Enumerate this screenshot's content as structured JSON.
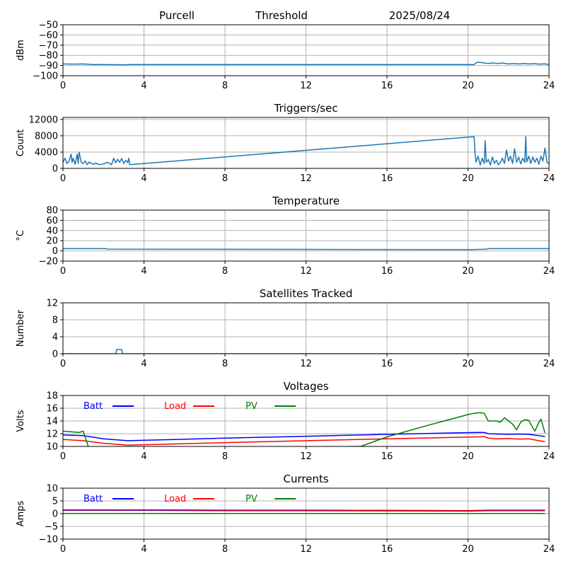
{
  "header": {
    "site": "Purcell",
    "mode": "Threshold",
    "date": "2025/08/24"
  },
  "colors": {
    "default": "#1f77b4",
    "batt": "#0000ff",
    "load": "#ff0000",
    "pv": "#008000",
    "grid": "#b0b0b0"
  },
  "chart_data": [
    {
      "type": "line",
      "title": "",
      "xlabel": "",
      "ylabel": "dBm",
      "xlim": [
        0,
        24
      ],
      "ylim": [
        -100,
        -50
      ],
      "xticks": [
        0,
        4,
        8,
        12,
        16,
        20,
        24
      ],
      "yticks": [
        -100,
        -90,
        -80,
        -70,
        -60,
        -50
      ],
      "ytick_labels": [
        "−100",
        "−90",
        "−80",
        "−70",
        "−60",
        "−50"
      ],
      "grid": true,
      "series": [
        {
          "color": "default",
          "x": [
            0,
            0.5,
            1.0,
            1.5,
            2.0,
            2.5,
            3.0,
            3.3,
            8,
            12,
            16,
            20,
            20.3,
            20.4,
            20.5,
            20.6,
            20.8,
            21.0,
            21.2,
            21.5,
            21.7,
            22.0,
            22.3,
            22.5,
            22.8,
            23.0,
            23.3,
            23.5,
            23.8,
            24
          ],
          "y": [
            -88.5,
            -88.6,
            -88.5,
            -89,
            -89,
            -89.2,
            -89.3,
            -89,
            -89,
            -89,
            -89,
            -89,
            -89,
            -87.5,
            -86.5,
            -87,
            -87.5,
            -88,
            -87.5,
            -88,
            -87.5,
            -88.5,
            -88,
            -88.5,
            -88,
            -88.5,
            -88.2,
            -88.6,
            -88.4,
            -89
          ]
        }
      ]
    },
    {
      "type": "line",
      "title": "Triggers/sec",
      "xlabel": "",
      "ylabel": "Count",
      "xlim": [
        0,
        24
      ],
      "ylim": [
        0,
        12500
      ],
      "xticks": [
        0,
        4,
        8,
        12,
        16,
        20,
        24
      ],
      "yticks": [
        0,
        4000,
        8000,
        12000
      ],
      "ytick_labels": [
        "0",
        "4000",
        "8000",
        "12000"
      ],
      "grid": true,
      "series": [
        {
          "color": "default",
          "x": [
            0,
            0.1,
            0.2,
            0.3,
            0.4,
            0.45,
            0.5,
            0.6,
            0.7,
            0.75,
            0.8,
            0.9,
            1.0,
            1.1,
            1.2,
            1.3,
            1.4,
            1.5,
            1.6,
            1.8,
            2.0,
            2.2,
            2.4,
            2.5,
            2.6,
            2.7,
            2.8,
            2.9,
            3.0,
            3.1,
            3.2,
            3.25,
            3.3,
            20.3,
            20.35,
            20.4,
            20.5,
            20.6,
            20.7,
            20.8,
            20.85,
            20.9,
            21.0,
            21.1,
            21.2,
            21.3,
            21.4,
            21.5,
            21.6,
            21.7,
            21.8,
            21.9,
            22.0,
            22.1,
            22.2,
            22.3,
            22.4,
            22.5,
            22.6,
            22.7,
            22.8,
            22.85,
            22.9,
            23.0,
            23.1,
            23.2,
            23.3,
            23.4,
            23.5,
            23.6,
            23.7,
            23.8,
            23.9,
            24
          ],
          "y": [
            1500,
            2500,
            1200,
            1800,
            3500,
            1500,
            2500,
            1000,
            3500,
            1200,
            4000,
            1500,
            1200,
            1800,
            900,
            1600,
            1200,
            1000,
            1300,
            900,
            1100,
            1500,
            900,
            2500,
            1400,
            2200,
            1500,
            2400,
            1200,
            2000,
            1400,
            2500,
            900,
            7800,
            3500,
            1500,
            3000,
            800,
            2500,
            1200,
            6800,
            1500,
            2200,
            800,
            2800,
            1200,
            2000,
            900,
            1500,
            2500,
            1200,
            4500,
            1800,
            3000,
            1200,
            4800,
            1500,
            2800,
            1100,
            2500,
            1500,
            7800,
            1600,
            3000,
            1200,
            2800,
            1500,
            2500,
            1000,
            3000,
            1800,
            5000,
            1500,
            1200
          ]
        }
      ]
    },
    {
      "type": "line",
      "title": "Temperature",
      "xlabel": "",
      "ylabel": "°C",
      "xlim": [
        0,
        24
      ],
      "ylim": [
        -20,
        80
      ],
      "xticks": [
        0,
        4,
        8,
        12,
        16,
        20,
        24
      ],
      "yticks": [
        -20,
        0,
        20,
        40,
        60,
        80
      ],
      "ytick_labels": [
        "−20",
        "0",
        "20",
        "40",
        "60",
        "80"
      ],
      "grid": true,
      "series": [
        {
          "color": "default",
          "x": [
            0,
            2.1,
            2.2,
            20.2,
            20.3,
            20.9,
            21.0,
            24
          ],
          "y": [
            4.5,
            4.5,
            3.5,
            2.5,
            2.8,
            3.2,
            4.5,
            4.5
          ]
        }
      ]
    },
    {
      "type": "line",
      "title": "Satellites Tracked",
      "xlabel": "",
      "ylabel": "Number",
      "xlim": [
        0,
        24
      ],
      "ylim": [
        0,
        12
      ],
      "xticks": [
        0,
        4,
        8,
        12,
        16,
        20,
        24
      ],
      "yticks": [
        0,
        4,
        8,
        12
      ],
      "ytick_labels": [
        "0",
        "4",
        "8",
        "12"
      ],
      "grid": true,
      "series": [
        {
          "color": "default",
          "x": [
            0,
            2.6,
            2.65,
            2.9,
            2.95,
            24
          ],
          "y": [
            0,
            0,
            1,
            1,
            0,
            0
          ]
        }
      ]
    },
    {
      "type": "line",
      "title": "Voltages",
      "xlabel": "",
      "ylabel": "Volts",
      "xlim": [
        0,
        24
      ],
      "ylim": [
        10,
        18
      ],
      "xticks": [
        0,
        4,
        8,
        12,
        16,
        20,
        24
      ],
      "yticks": [
        10,
        12,
        14,
        16,
        18
      ],
      "ytick_labels": [
        "10",
        "12",
        "14",
        "16",
        "18"
      ],
      "grid": true,
      "legend": "top-left",
      "series": [
        {
          "name": "Batt",
          "color": "batt",
          "x": [
            0,
            1,
            2,
            3.2,
            8,
            12,
            16,
            20.5,
            20.8,
            21.0,
            21.5,
            22.0,
            22.5,
            23.0,
            23.5,
            23.8
          ],
          "y": [
            11.8,
            11.7,
            11.2,
            10.9,
            11.3,
            11.6,
            11.9,
            12.2,
            12.2,
            12.0,
            11.95,
            11.9,
            11.95,
            11.9,
            11.7,
            11.55
          ]
        },
        {
          "name": "Load",
          "color": "load",
          "x": [
            0,
            1,
            2,
            3.2,
            8,
            12,
            16,
            20.5,
            20.8,
            21.0,
            21.5,
            22.0,
            22.5,
            23.0,
            23.5,
            23.8
          ],
          "y": [
            11.1,
            10.9,
            10.5,
            10.2,
            10.6,
            10.9,
            11.2,
            11.5,
            11.55,
            11.3,
            11.2,
            11.25,
            11.15,
            11.2,
            10.9,
            10.75
          ]
        },
        {
          "name": "PV",
          "color": "pv",
          "x": [
            0,
            0.4,
            0.8,
            1.0,
            1.3,
            14.7,
            16,
            18,
            20,
            20.3,
            20.6,
            20.8,
            21.0,
            21.2,
            21.4,
            21.6,
            21.8,
            22.0,
            22.2,
            22.4,
            22.6,
            22.8,
            23.0,
            23.1,
            23.3,
            23.5,
            23.6,
            23.8
          ],
          "y": [
            12.4,
            12.3,
            12.2,
            12.4,
            9.5,
            10,
            11.5,
            13.3,
            15.0,
            15.2,
            15.3,
            15.2,
            14.0,
            14.0,
            14.0,
            13.8,
            14.5,
            14.0,
            13.5,
            12.6,
            13.8,
            14.2,
            14.1,
            13.5,
            12.4,
            13.8,
            14.3,
            12.1
          ]
        }
      ]
    },
    {
      "type": "line",
      "title": "Currents",
      "xlabel": "",
      "ylabel": "Amps",
      "xlim": [
        0,
        24
      ],
      "ylim": [
        -10,
        10
      ],
      "xticks": [
        0,
        4,
        8,
        12,
        16,
        20,
        24
      ],
      "yticks": [
        -10,
        -5,
        0,
        5,
        10
      ],
      "ytick_labels": [
        "−10",
        "−5",
        "0",
        "5",
        "10"
      ],
      "grid": true,
      "legend": "top-left",
      "series": [
        {
          "name": "Batt",
          "color": "batt",
          "x": [
            0,
            4,
            8,
            12,
            16,
            20,
            21,
            23.8
          ],
          "y": [
            1.3,
            1.3,
            1.2,
            1.2,
            1.1,
            1.0,
            1.2,
            1.2
          ]
        },
        {
          "name": "Load",
          "color": "load",
          "x": [
            0,
            4,
            8,
            12,
            16,
            20,
            21,
            23.8
          ],
          "y": [
            1.5,
            1.5,
            1.4,
            1.4,
            1.3,
            1.2,
            1.4,
            1.4
          ]
        },
        {
          "name": "PV",
          "color": "pv",
          "x": [
            0,
            23.8
          ],
          "y": [
            0.05,
            0.05
          ]
        }
      ]
    }
  ]
}
